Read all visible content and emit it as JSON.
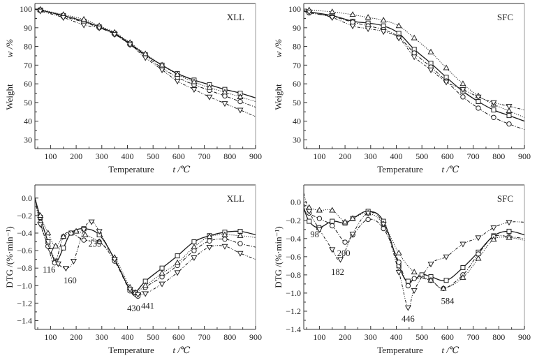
{
  "chart_data": [
    {
      "id": "tga_xll",
      "type": "line",
      "panel_tag": "XLL",
      "xlabel": "Temperature",
      "xlabel_symbol": "t /℃",
      "ylabel": "Weight",
      "ylabel_symbol": "w /%",
      "xlim": [
        39,
        900
      ],
      "ylim": [
        25.3,
        103
      ],
      "xticks": [
        100,
        200,
        300,
        400,
        500,
        600,
        700,
        800,
        900
      ],
      "yticks": [
        30,
        40,
        50,
        60,
        70,
        80,
        90,
        100
      ],
      "grid": false,
      "annotations": [],
      "series": [
        {
          "name": "square",
          "marker": "square",
          "line": "solid",
          "x": [
            39,
            60,
            150,
            230,
            290,
            350,
            410,
            470,
            535,
            595,
            660,
            720,
            780,
            840,
            900
          ],
          "y": [
            100,
            99.5,
            96.5,
            93.5,
            90.5,
            87,
            81.5,
            75.5,
            70,
            65.5,
            62,
            59.5,
            57,
            55,
            52.5
          ]
        },
        {
          "name": "circle",
          "marker": "circle",
          "line": "dash-dot",
          "x": [
            39,
            60,
            150,
            230,
            290,
            350,
            410,
            470,
            535,
            595,
            660,
            720,
            780,
            840,
            900
          ],
          "y": [
            100,
            99.5,
            96,
            93,
            90,
            86.5,
            81,
            75,
            68.5,
            63.5,
            59.5,
            56.5,
            53.5,
            50.5,
            47.5
          ]
        },
        {
          "name": "triangle-up",
          "marker": "triangle-up",
          "line": "dotted",
          "x": [
            39,
            60,
            150,
            230,
            290,
            350,
            410,
            470,
            535,
            595,
            660,
            720,
            780,
            840,
            900
          ],
          "y": [
            100,
            99.8,
            97,
            94.5,
            91,
            87.5,
            82,
            76,
            70,
            65,
            61,
            58,
            55.5,
            53,
            50.5
          ]
        },
        {
          "name": "triangle-down",
          "marker": "triangle-down",
          "line": "dash-dot-dot",
          "x": [
            39,
            60,
            150,
            230,
            290,
            350,
            410,
            470,
            535,
            595,
            660,
            720,
            780,
            840,
            900
          ],
          "y": [
            100,
            99,
            95.5,
            91.5,
            90,
            86.5,
            81,
            74,
            67.5,
            61.5,
            57,
            53,
            49.5,
            46,
            42.5
          ]
        }
      ]
    },
    {
      "id": "tga_sfc",
      "type": "line",
      "panel_tag": "SFC",
      "xlabel": "Temperature",
      "xlabel_symbol": "t /℃",
      "ylabel": "Weight",
      "ylabel_symbol": "w /%",
      "xlim": [
        39,
        900
      ],
      "ylim": [
        25.3,
        103
      ],
      "xticks": [
        100,
        200,
        300,
        400,
        500,
        600,
        700,
        800,
        900
      ],
      "yticks": [
        30,
        40,
        50,
        60,
        70,
        80,
        90,
        100
      ],
      "grid": false,
      "annotations": [],
      "series": [
        {
          "name": "square",
          "marker": "square",
          "line": "solid",
          "x": [
            39,
            60,
            150,
            230,
            290,
            350,
            410,
            470,
            535,
            595,
            660,
            720,
            780,
            840,
            900
          ],
          "y": [
            99,
            98.5,
            96.5,
            93.5,
            92.5,
            91,
            87,
            78.5,
            71,
            63.5,
            56,
            50.5,
            46,
            43,
            40
          ]
        },
        {
          "name": "circle",
          "marker": "circle",
          "line": "dash-dot",
          "x": [
            39,
            60,
            150,
            230,
            290,
            350,
            410,
            470,
            535,
            595,
            660,
            720,
            780,
            840,
            900
          ],
          "y": [
            99,
            98,
            96,
            93,
            91,
            89,
            85,
            76.5,
            69,
            61.5,
            53,
            47,
            42,
            38.5,
            35.5
          ]
        },
        {
          "name": "triangle-up",
          "marker": "triangle-up",
          "line": "dotted",
          "x": [
            39,
            60,
            150,
            230,
            290,
            350,
            410,
            470,
            535,
            595,
            660,
            720,
            780,
            840,
            900
          ],
          "y": [
            99.5,
            99.5,
            98.5,
            97,
            95.5,
            94,
            91,
            84.5,
            77,
            68.5,
            60,
            53.5,
            49,
            45.5,
            42
          ]
        },
        {
          "name": "triangle-down",
          "marker": "triangle-down",
          "line": "dash-dot-dot",
          "x": [
            39,
            60,
            150,
            230,
            290,
            350,
            410,
            470,
            535,
            595,
            660,
            720,
            780,
            840,
            900
          ],
          "y": [
            99,
            98.5,
            95.5,
            91,
            89.5,
            88,
            84.5,
            74.5,
            67.5,
            61,
            57,
            53,
            50,
            48,
            46
          ]
        }
      ]
    },
    {
      "id": "dtg_xll",
      "type": "line",
      "panel_tag": "XLL",
      "xlabel": "Temperature",
      "xlabel_symbol": "t /℃",
      "ylabel": "DTG /(%·min⁻¹)",
      "xlim": [
        39,
        900
      ],
      "ylim": [
        -1.5,
        0.15
      ],
      "xticks": [
        100,
        200,
        300,
        400,
        500,
        600,
        700,
        800,
        900
      ],
      "yticks": [
        0.0,
        -0.2,
        -0.4,
        -0.6,
        -0.8,
        -1.0,
        -1.2,
        -1.4
      ],
      "ytick_labels": [
        "0.0",
        "-0.2",
        "-0.4",
        "-0.6",
        "-0.8",
        "-1.0",
        "-1.2",
        "-1.4"
      ],
      "grid": false,
      "annotations": [
        {
          "text": "116",
          "x": 116,
          "y": -0.74
        },
        {
          "text": "160",
          "x": 160,
          "y": -0.8
        },
        {
          "text": "235",
          "x": 235,
          "y": -0.49
        },
        {
          "text": "430",
          "x": 430,
          "y": -1.1
        },
        {
          "text": "441",
          "x": 441,
          "y": -1.12
        }
      ],
      "series": [
        {
          "name": "square",
          "marker": "square",
          "line": "solid",
          "x": [
            39,
            60,
            90,
            120,
            150,
            180,
            230,
            290,
            350,
            410,
            430,
            470,
            535,
            595,
            660,
            720,
            780,
            840,
            900
          ],
          "y": [
            0.0,
            -0.22,
            -0.5,
            -0.72,
            -0.57,
            -0.4,
            -0.35,
            -0.42,
            -0.7,
            -1.05,
            -1.08,
            -0.95,
            -0.8,
            -0.66,
            -0.5,
            -0.43,
            -0.39,
            -0.38,
            -0.42
          ]
        },
        {
          "name": "circle",
          "marker": "circle",
          "line": "dash-dot",
          "x": [
            39,
            60,
            90,
            116,
            150,
            180,
            230,
            290,
            350,
            410,
            441,
            470,
            535,
            595,
            660,
            720,
            780,
            840,
            900
          ],
          "y": [
            0.0,
            -0.28,
            -0.55,
            -0.74,
            -0.44,
            -0.4,
            -0.48,
            -0.5,
            -0.72,
            -1.06,
            -1.12,
            -1.02,
            -0.9,
            -0.77,
            -0.6,
            -0.49,
            -0.47,
            -0.52,
            -0.56
          ]
        },
        {
          "name": "triangle-up",
          "marker": "triangle-up",
          "line": "dotted",
          "x": [
            39,
            60,
            90,
            120,
            150,
            200,
            235,
            290,
            350,
            410,
            430,
            470,
            535,
            595,
            660,
            720,
            780,
            840,
            900
          ],
          "y": [
            0.0,
            -0.2,
            -0.4,
            -0.55,
            -0.44,
            -0.38,
            -0.42,
            -0.5,
            -0.68,
            -1.02,
            -1.08,
            -1.0,
            -0.86,
            -0.74,
            -0.56,
            -0.44,
            -0.42,
            -0.43,
            -0.45
          ]
        },
        {
          "name": "triangle-down",
          "marker": "triangle-down",
          "line": "dash-dot-dot",
          "x": [
            39,
            60,
            100,
            130,
            160,
            190,
            230,
            260,
            290,
            350,
            410,
            441,
            470,
            535,
            595,
            660,
            720,
            780,
            840,
            900
          ],
          "y": [
            0.0,
            -0.3,
            -0.6,
            -0.75,
            -0.8,
            -0.72,
            -0.36,
            -0.27,
            -0.38,
            -0.7,
            -1.04,
            -1.1,
            -1.09,
            -0.98,
            -0.85,
            -0.68,
            -0.56,
            -0.55,
            -0.63,
            -0.7
          ]
        }
      ]
    },
    {
      "id": "dtg_sfc",
      "type": "line",
      "panel_tag": "SFC",
      "xlabel": "Temperature",
      "xlabel_symbol": "t /℃",
      "ylabel": "DTG /(%·min⁻¹)",
      "xlim": [
        39,
        900
      ],
      "ylim": [
        -1.4,
        0.19
      ],
      "xticks": [
        100,
        200,
        300,
        400,
        500,
        600,
        700,
        800,
        900
      ],
      "yticks": [
        0.0,
        -0.2,
        -0.4,
        -0.6,
        -0.8,
        -1.0,
        -1.2,
        -1.4
      ],
      "ytick_labels": [
        "0.0",
        "-0.2",
        "-0.4",
        "-0.6",
        "-0.8",
        "-1.0",
        "-1.2",
        "-1.4"
      ],
      "grid": false,
      "annotations": [
        {
          "text": "98",
          "x": 98,
          "y": -0.28
        },
        {
          "text": "200",
          "x": 200,
          "y": -0.44
        },
        {
          "text": "182",
          "x": 182,
          "y": -0.63
        },
        {
          "text": "446",
          "x": 446,
          "y": -1.16
        },
        {
          "text": "584",
          "x": 584,
          "y": -0.95
        }
      ],
      "series": [
        {
          "name": "square",
          "marker": "square",
          "line": "solid",
          "x": [
            39,
            60,
            98,
            150,
            200,
            230,
            290,
            350,
            410,
            446,
            500,
            535,
            595,
            660,
            720,
            780,
            840,
            900
          ],
          "y": [
            -0.06,
            -0.21,
            -0.28,
            -0.21,
            -0.23,
            -0.18,
            -0.1,
            -0.21,
            -0.7,
            -0.87,
            -0.8,
            -0.82,
            -0.86,
            -0.72,
            -0.55,
            -0.37,
            -0.32,
            -0.36
          ]
        },
        {
          "name": "circle",
          "marker": "circle",
          "line": "dash-dot",
          "x": [
            39,
            60,
            100,
            150,
            200,
            230,
            290,
            350,
            410,
            446,
            470,
            535,
            584,
            660,
            720,
            780,
            840,
            900
          ],
          "y": [
            -0.02,
            -0.12,
            -0.18,
            -0.26,
            -0.44,
            -0.36,
            -0.19,
            -0.29,
            -0.66,
            -0.92,
            -0.84,
            -0.86,
            -0.95,
            -0.8,
            -0.57,
            -0.38,
            -0.38,
            -0.4
          ]
        },
        {
          "name": "triangle-up",
          "marker": "triangle-up",
          "line": "dotted",
          "x": [
            39,
            60,
            100,
            150,
            200,
            230,
            290,
            350,
            410,
            470,
            535,
            584,
            660,
            720,
            780,
            840,
            900
          ],
          "y": [
            -0.02,
            -0.06,
            -0.09,
            -0.09,
            -0.22,
            -0.18,
            -0.12,
            -0.24,
            -0.56,
            -0.77,
            -0.86,
            -0.95,
            -0.83,
            -0.62,
            -0.41,
            -0.39,
            -0.42
          ]
        },
        {
          "name": "triangle-down",
          "marker": "triangle-down",
          "line": "dash-dot-dot",
          "x": [
            39,
            60,
            100,
            150,
            182,
            230,
            290,
            350,
            410,
            446,
            470,
            535,
            595,
            660,
            720,
            780,
            840,
            900
          ],
          "y": [
            0.1,
            -0.1,
            -0.3,
            -0.52,
            -0.63,
            -0.35,
            -0.12,
            -0.24,
            -0.77,
            -1.16,
            -0.97,
            -0.68,
            -0.6,
            -0.46,
            -0.39,
            -0.28,
            -0.22,
            -0.22
          ]
        }
      ]
    }
  ]
}
